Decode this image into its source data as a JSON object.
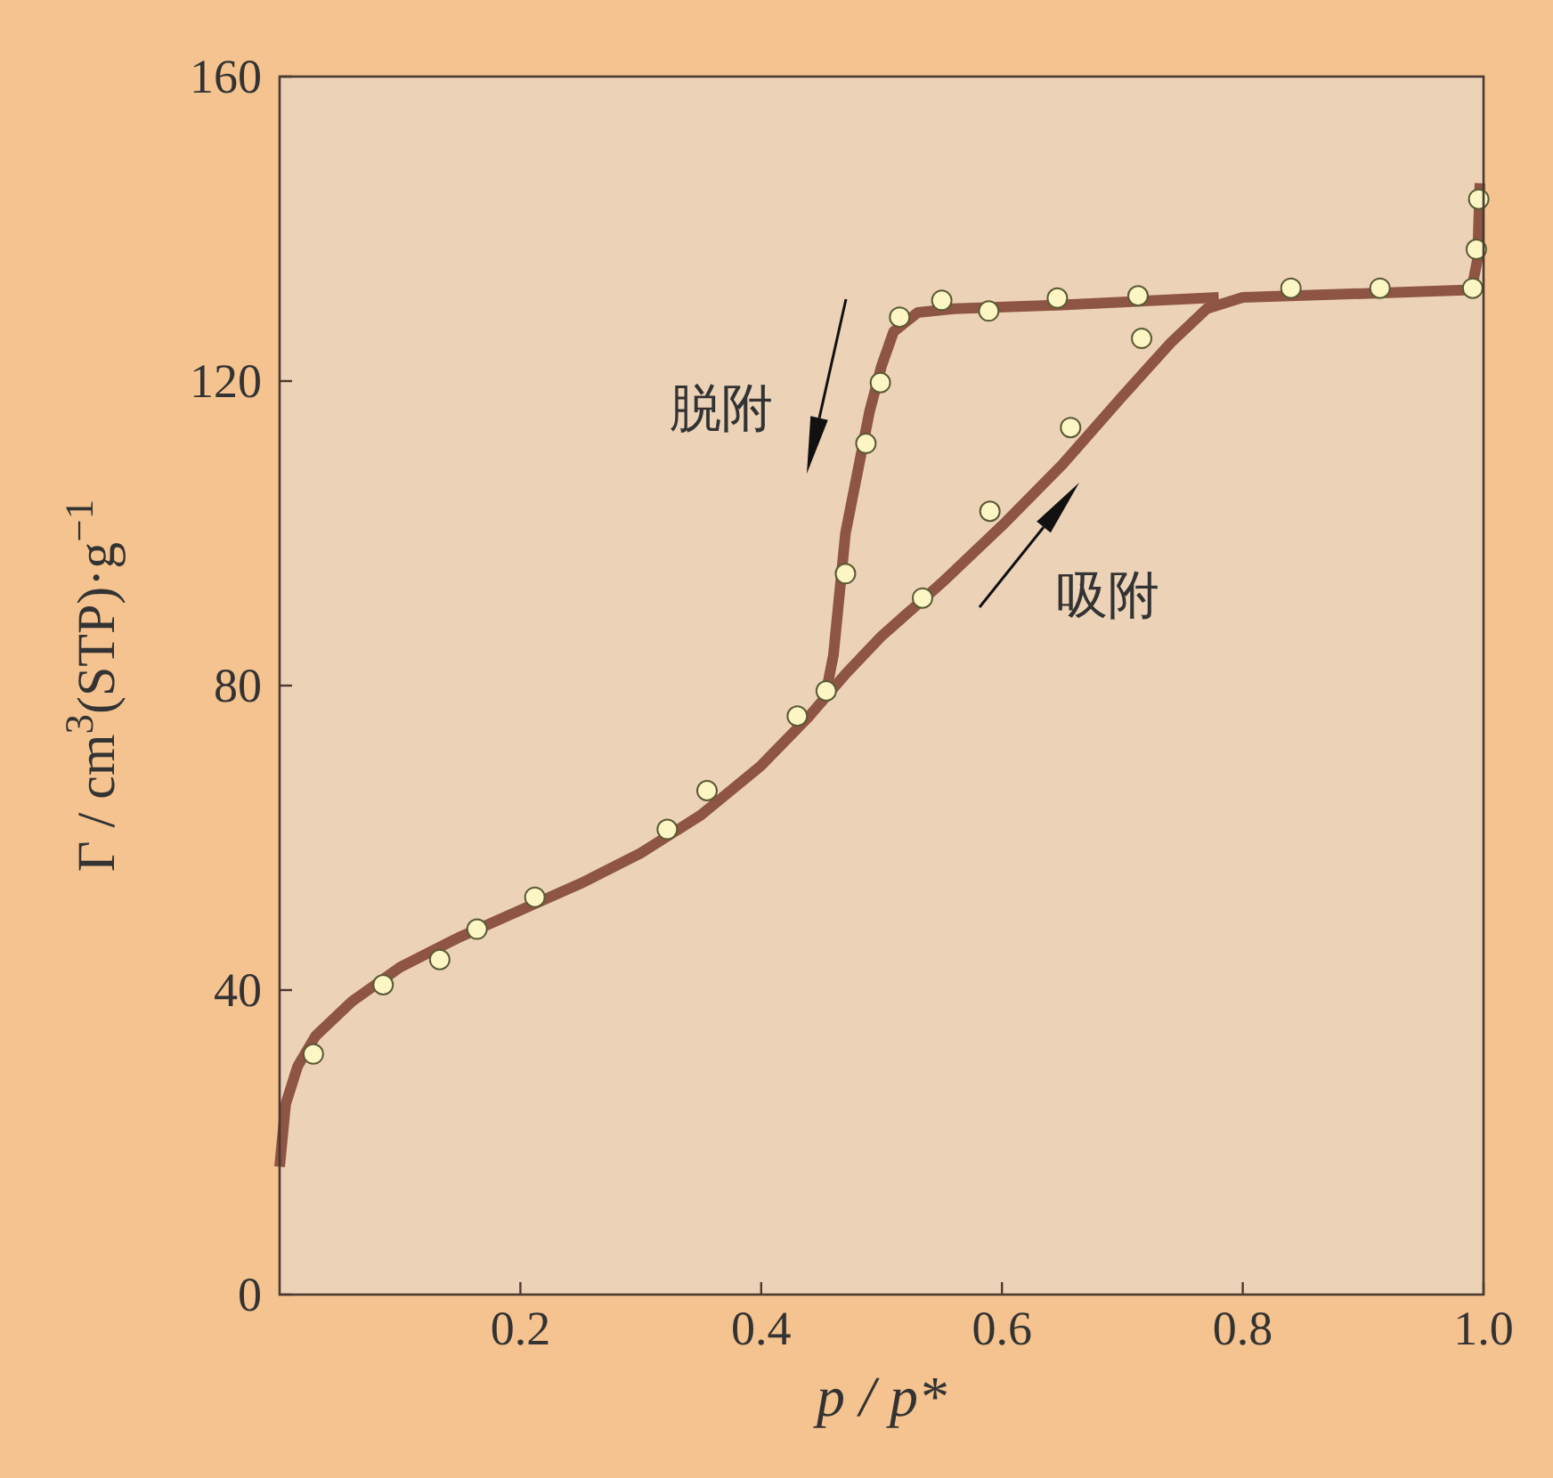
{
  "chart_data": {
    "type": "line",
    "xlabel": "p / p*",
    "ylabel": "Γ / cm$^{3}$(STP)·g$^{−1}$",
    "xlim": [
      0,
      1
    ],
    "ylim": [
      0,
      160
    ],
    "xticks": [
      0.2,
      0.4,
      0.6,
      0.8,
      {
        "value": 1,
        "label": "1.0"
      }
    ],
    "yticks": [
      0,
      40,
      80,
      120,
      160
    ],
    "grid": false,
    "series": [
      {
        "color": "#8e5444",
        "marker": "none",
        "x": [
          0,
          0.005,
          0.015,
          0.03,
          0.06,
          0.1,
          0.15,
          0.2,
          0.25,
          0.3,
          0.35,
          0.4,
          0.44,
          0.47,
          0.5,
          0.55,
          0.6,
          0.65,
          0.7,
          0.74,
          0.77,
          0.8,
          0.9,
          0.99,
          0.995,
          0.997
        ],
        "values": [
          16.8,
          25,
          30,
          34,
          38.5,
          43,
          47,
          50.5,
          54,
          58,
          63,
          69.5,
          76,
          81.5,
          86.5,
          93.5,
          101,
          109,
          118,
          125,
          129.5,
          131,
          131.5,
          132,
          136,
          146
        ]
      },
      {
        "color": "#8e5444",
        "marker": "none",
        "x": [
          0.455,
          0.46,
          0.465,
          0.47,
          0.48,
          0.49,
          0.5,
          0.51,
          0.53,
          0.56,
          0.65,
          0.78
        ],
        "values": [
          80,
          84,
          92,
          100,
          108,
          116,
          122,
          126.5,
          129,
          129.5,
          130,
          131
        ]
      },
      {
        "type": "scatter",
        "color": "#fbf6c4",
        "marker": "circle",
        "x": [
          0.028,
          0.086,
          0.133,
          0.164,
          0.212,
          0.322,
          0.355,
          0.43,
          0.454,
          0.534,
          0.59,
          0.657,
          0.716,
          0.84,
          0.914,
          0.991,
          0.994,
          0.996
        ],
        "values": [
          31.6,
          40.7,
          44.0,
          48.0,
          52.2,
          61.1,
          66.2,
          76.0,
          79.3,
          91.5,
          102.9,
          113.9,
          125.6,
          132.2,
          132.2,
          132.2,
          137.3,
          143.9
        ]
      },
      {
        "type": "scatter",
        "color": "#fbf6c4",
        "marker": "circle",
        "x": [
          0.47,
          0.487,
          0.499,
          0.515,
          0.55,
          0.589,
          0.646,
          0.713
        ],
        "values": [
          94.7,
          111.8,
          119.8,
          128.4,
          130.6,
          129.2,
          130.9,
          131.2
        ]
      }
    ],
    "annotations": [
      "脱附",
      "吸附"
    ]
  }
}
